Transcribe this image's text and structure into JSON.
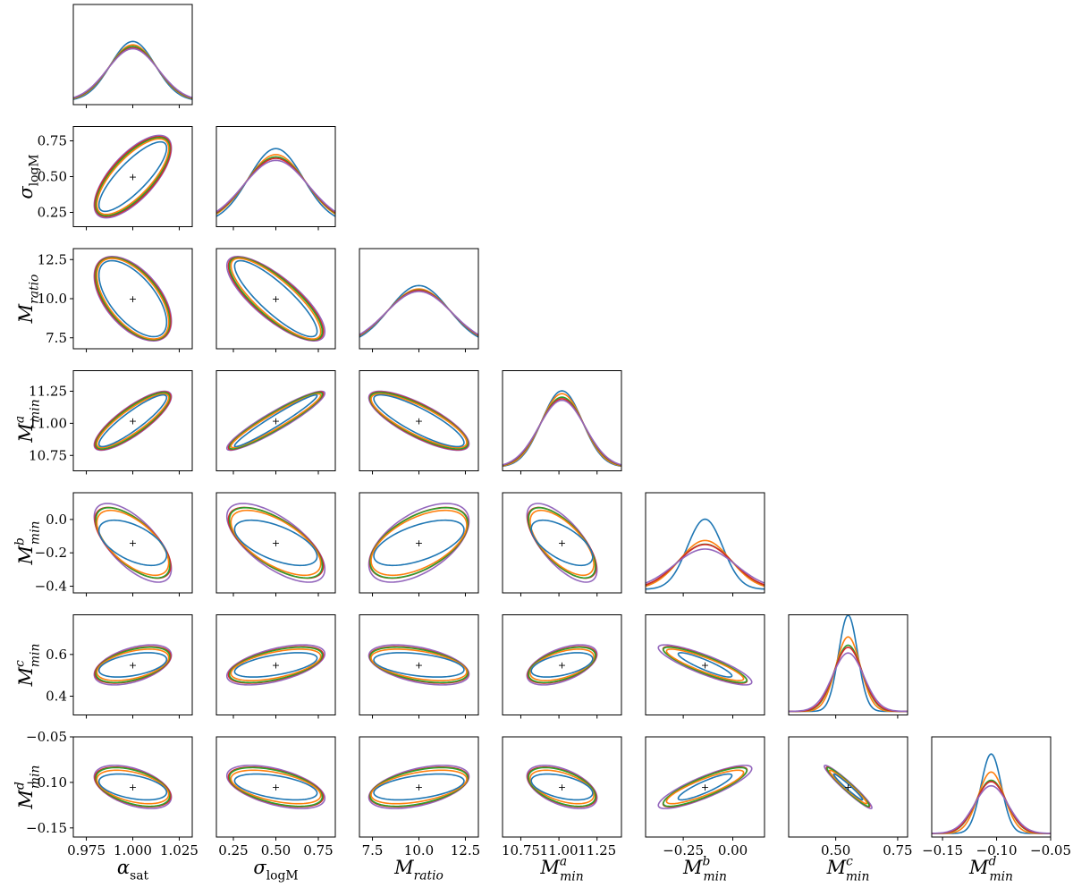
{
  "chart_data": {
    "type": "corner-fisher-forecast",
    "parameters": [
      {
        "sym": "α",
        "sub": "sat",
        "sup": "",
        "italic_sym": true,
        "upright_sub": true,
        "fiducial": 1.0,
        "range": [
          0.968,
          1.032
        ],
        "ticks": [
          0.975,
          1.0,
          1.025
        ],
        "tick_labels": [
          "0.975",
          "1.000",
          "1.025"
        ]
      },
      {
        "sym": "σ",
        "sub": "logM",
        "sup": "",
        "italic_sym": true,
        "upright_sub": true,
        "fiducial": 0.5,
        "range": [
          0.15,
          0.85
        ],
        "ticks": [
          0.25,
          0.5,
          0.75
        ],
        "tick_labels": [
          "0.25",
          "0.50",
          "0.75"
        ]
      },
      {
        "sym": "M",
        "sub": "ratio",
        "sup": "",
        "italic_sym": true,
        "upright_sub": false,
        "fiducial": 10.0,
        "range": [
          6.8,
          13.2
        ],
        "ticks": [
          7.5,
          10.0,
          12.5
        ],
        "tick_labels": [
          "7.5",
          "10.0",
          "12.5"
        ]
      },
      {
        "sym": "M",
        "sub": "min",
        "sup": "a",
        "italic_sym": true,
        "upright_sub": false,
        "fiducial": 11.02,
        "range": [
          10.63,
          11.41
        ],
        "ticks": [
          10.75,
          11.0,
          11.25
        ],
        "tick_labels": [
          "10.75",
          "11.00",
          "11.25"
        ]
      },
      {
        "sym": "M",
        "sub": "min",
        "sup": "b",
        "italic_sym": true,
        "upright_sub": false,
        "fiducial": -0.14,
        "range": [
          -0.44,
          0.16
        ],
        "ticks": [
          -0.4,
          -0.2,
          0.0
        ],
        "tick_labels": [
          "−0.4",
          "−0.2",
          "0.0"
        ],
        "x_ticks": [
          -0.25,
          0.0
        ],
        "x_tick_labels": [
          "−0.25",
          "0.00"
        ]
      },
      {
        "sym": "M",
        "sub": "min",
        "sup": "c",
        "italic_sym": true,
        "upright_sub": false,
        "fiducial": 0.55,
        "range": [
          0.31,
          0.79
        ],
        "ticks": [
          0.4,
          0.6
        ],
        "tick_labels": [
          "0.4",
          "0.6"
        ],
        "x_ticks": [
          0.5,
          0.75
        ],
        "x_tick_labels": [
          "0.50",
          "0.75"
        ]
      },
      {
        "sym": "M",
        "sub": "min",
        "sup": "d",
        "italic_sym": true,
        "upright_sub": false,
        "fiducial": -0.105,
        "range": [
          -0.16,
          -0.05
        ],
        "ticks": [
          -0.15,
          -0.1,
          -0.05
        ],
        "tick_labels": [
          "−0.15",
          "−0.10",
          "−0.05"
        ]
      }
    ],
    "series": [
      {
        "color": "#1f77b4"
      },
      {
        "color": "#ff7f0e"
      },
      {
        "color": "#2ca02c"
      },
      {
        "color": "#d62728"
      },
      {
        "color": "#9467bd"
      }
    ],
    "fiducial_marker": "+",
    "legend": "none",
    "grid": false
  }
}
